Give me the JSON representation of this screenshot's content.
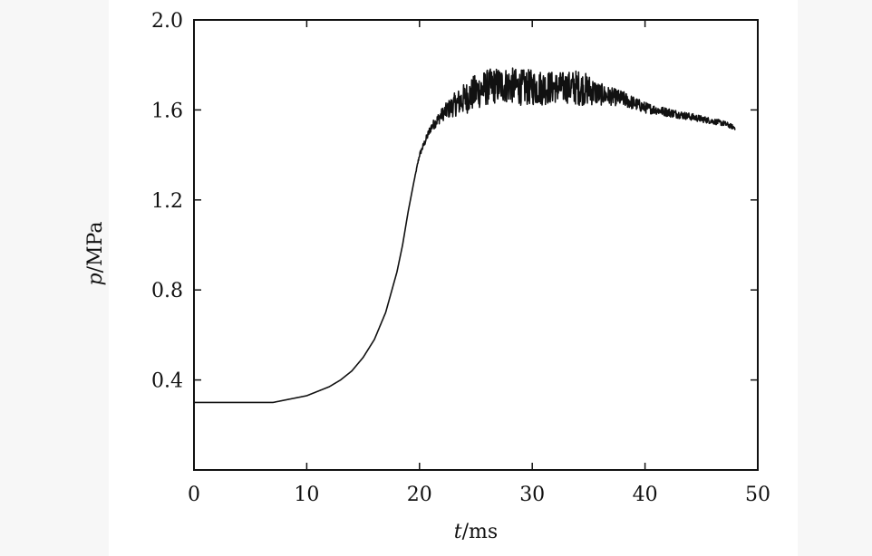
{
  "chart_data": {
    "type": "line",
    "title": "",
    "xlabel": {
      "italic": "t",
      "rest": "/ms"
    },
    "ylabel": {
      "italic": "p",
      "rest": "/MPa"
    },
    "xlim": [
      0,
      50
    ],
    "ylim": [
      0,
      2.0
    ],
    "x_ticks": [
      "0",
      "10",
      "20",
      "30",
      "40",
      "50"
    ],
    "y_ticks": [
      "0.4",
      "0.8",
      "1.2",
      "1.6",
      "2.0"
    ],
    "y_tick_values": [
      0.4,
      0.8,
      1.2,
      1.6,
      2.0
    ],
    "x_tick_values": [
      0,
      10,
      20,
      30,
      40,
      50
    ],
    "grid": false,
    "series": [
      {
        "color": "#111111",
        "x": [
          0,
          7,
          8,
          9,
          10,
          11,
          12,
          13,
          14,
          15,
          16,
          17,
          18,
          18.5,
          19,
          19.5,
          20,
          21,
          22,
          23,
          24,
          25,
          26,
          27,
          28,
          29,
          30,
          31,
          32,
          33,
          34,
          35,
          36,
          37,
          38,
          39,
          40,
          41,
          42,
          43,
          44,
          45,
          46,
          47,
          48
        ],
        "y": [
          0.3,
          0.3,
          0.31,
          0.32,
          0.33,
          0.35,
          0.37,
          0.4,
          0.44,
          0.5,
          0.58,
          0.7,
          0.88,
          1.0,
          1.15,
          1.28,
          1.4,
          1.52,
          1.58,
          1.62,
          1.65,
          1.68,
          1.7,
          1.71,
          1.71,
          1.7,
          1.7,
          1.7,
          1.7,
          1.7,
          1.7,
          1.69,
          1.67,
          1.66,
          1.65,
          1.63,
          1.61,
          1.6,
          1.59,
          1.58,
          1.57,
          1.56,
          1.55,
          1.54,
          1.52
        ],
        "noise_amplitude": [
          0,
          0,
          0,
          0,
          0,
          0,
          0,
          0,
          0,
          0,
          0,
          0,
          0,
          0,
          0,
          0,
          0.01,
          0.02,
          0.03,
          0.05,
          0.07,
          0.08,
          0.08,
          0.08,
          0.08,
          0.08,
          0.08,
          0.08,
          0.07,
          0.07,
          0.08,
          0.07,
          0.05,
          0.04,
          0.035,
          0.03,
          0.025,
          0.02,
          0.02,
          0.018,
          0.016,
          0.015,
          0.013,
          0.012,
          0.01
        ]
      }
    ]
  }
}
